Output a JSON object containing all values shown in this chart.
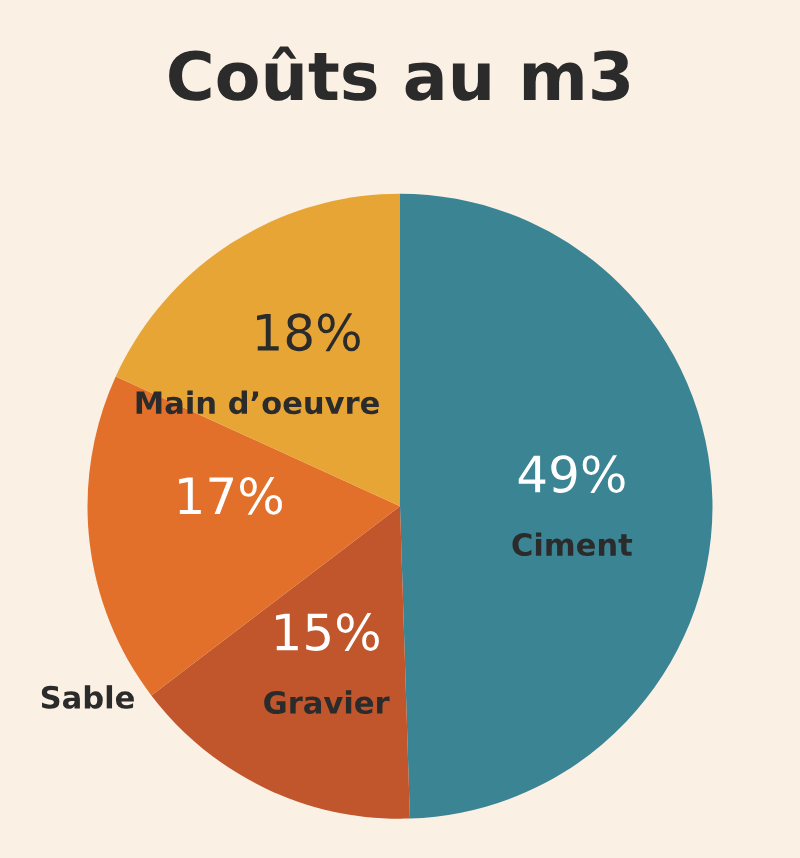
{
  "chart_data": {
    "type": "pie",
    "title": "Coûts au m3",
    "categories": [
      "Ciment",
      "Gravier",
      "Sable",
      "Main d’oeuvre"
    ],
    "values": [
      49,
      15,
      17,
      18
    ],
    "colors": [
      "#3b8494",
      "#c1552b",
      "#e2702a",
      "#e7a535"
    ],
    "value_labels": [
      "49%",
      "15%",
      "17%",
      "18%"
    ]
  }
}
